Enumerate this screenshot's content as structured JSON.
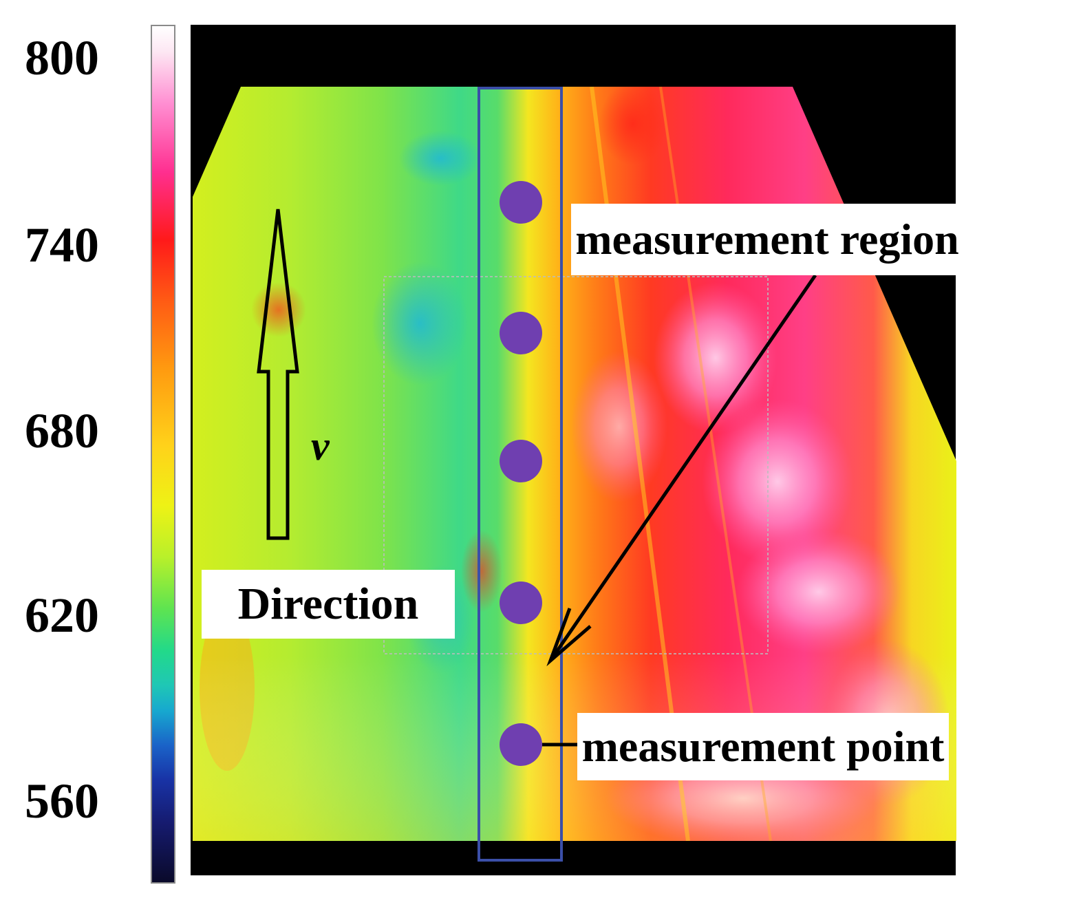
{
  "colorbar": {
    "ticks": [
      "800",
      "740",
      "680",
      "620",
      "560"
    ]
  },
  "annotations": {
    "region_label": "measurement region",
    "point_label": "measurement point",
    "direction_label": "Direction",
    "velocity_symbol": "v"
  },
  "measurement_points": {
    "count": 5,
    "color": "#6f3fb0"
  },
  "colors": {
    "region_box": "#3b4fa8",
    "background_band": "#000000",
    "hot": "#ff2f6a",
    "warm": "#ff9a10",
    "cool": "#22d98a"
  }
}
